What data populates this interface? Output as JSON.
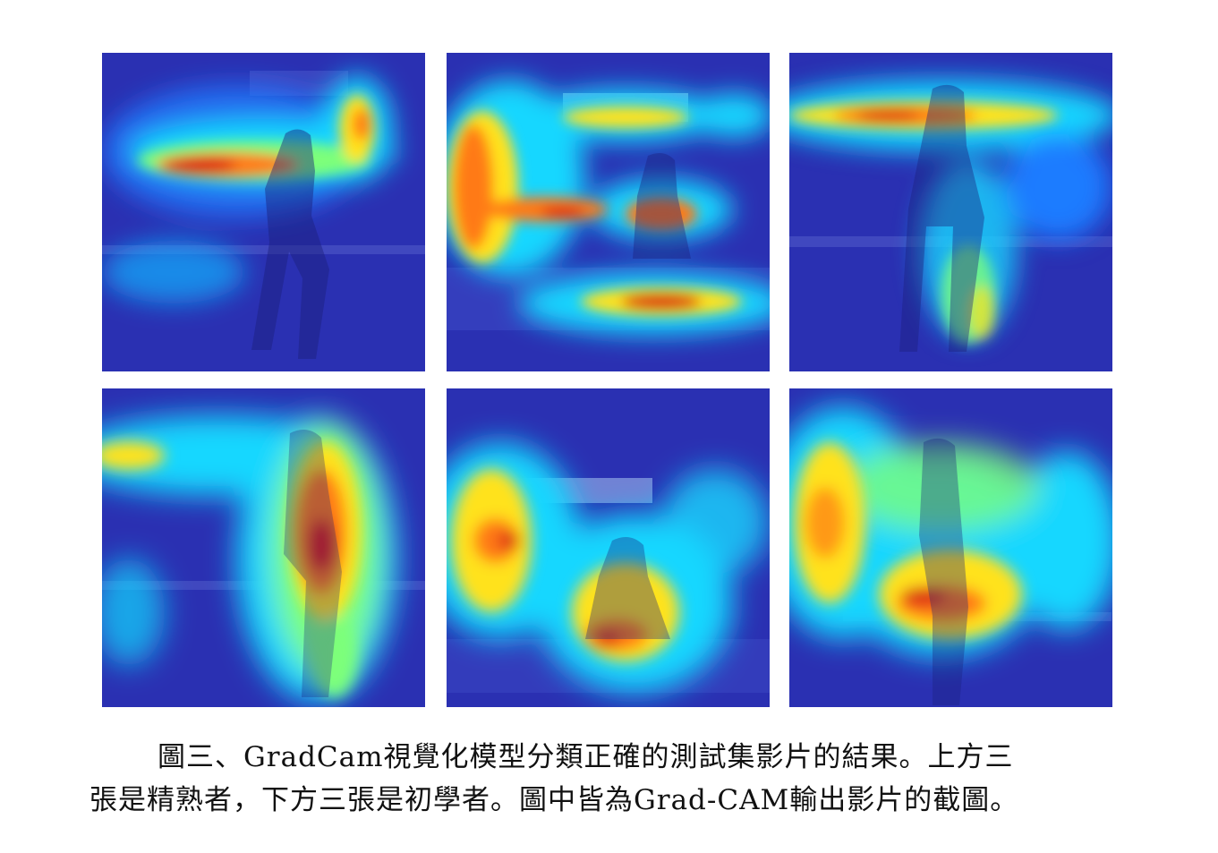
{
  "figure": {
    "panels": [
      {
        "id": "p1",
        "group": "expert",
        "position": "top-left"
      },
      {
        "id": "p2",
        "group": "expert",
        "position": "top-center"
      },
      {
        "id": "p3",
        "group": "expert",
        "position": "top-right"
      },
      {
        "id": "p4",
        "group": "beginner",
        "position": "bottom-left"
      },
      {
        "id": "p5",
        "group": "beginner",
        "position": "bottom-center"
      },
      {
        "id": "p6",
        "group": "beginner",
        "position": "bottom-right"
      }
    ],
    "colormap": [
      "#2b2fb0",
      "#1e7bff",
      "#16d7ff",
      "#7dff7a",
      "#ffe21a",
      "#ff7a12",
      "#d81414"
    ]
  },
  "caption": {
    "line1": "圖三、GradCam視覺化模型分類正確的測試集影片的結果。上方三",
    "line2": "張是精熟者，下方三張是初學者。圖中皆為Grad-CAM輸出影片的截圖。"
  }
}
